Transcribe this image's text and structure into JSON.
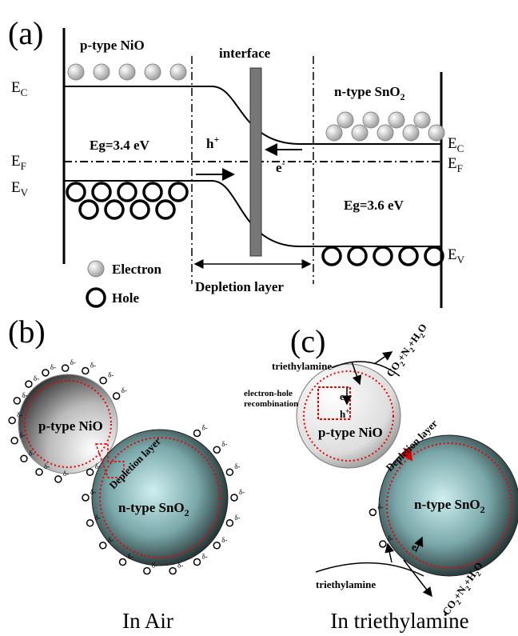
{
  "panel_a": {
    "label": "(a)",
    "left_material": "p-type NiO",
    "interface": "interface",
    "right_material": {
      "main": "n-type SnO",
      "sub": "2"
    },
    "left_gap": "Eg=3.4 eV",
    "right_gap": "Eg=3.6 eV",
    "hole_carrier": {
      "main": "h",
      "sup": "+"
    },
    "electron_carrier": {
      "main": "e",
      "sup": "-"
    },
    "left_ec": {
      "main": "E",
      "sub": "C"
    },
    "left_ef": {
      "main": "E",
      "sub": "F"
    },
    "left_ev": {
      "main": "E",
      "sub": "V"
    },
    "right_ec": {
      "main": "E",
      "sub": "C"
    },
    "right_ef": {
      "main": "E",
      "sub": "F"
    },
    "right_ev": {
      "main": "E",
      "sub": "V"
    },
    "legend_electron": "Electron",
    "legend_hole": "Hole",
    "depletion": "Depletion layer"
  },
  "panel_b": {
    "label": "(b)",
    "nio": "p-type NiO",
    "sno2": {
      "main": "n-type SnO",
      "sub": "2"
    },
    "depletion": "Depletion layer",
    "delta": "δ-",
    "caption": "In Air"
  },
  "panel_c": {
    "label": "(c)",
    "gas_top": "triethylamine",
    "recombination": [
      "electron-hole",
      "recombination"
    ],
    "product": [
      "CO",
      "2",
      "+N",
      "2",
      "+H",
      "2",
      "O"
    ],
    "electron": "e",
    "hole": {
      "main": "h",
      "sup": "+"
    },
    "nio": "p-type NiO",
    "depletion": "Depletion layer",
    "sno2": {
      "main": "n-type SnO",
      "sub": "2"
    },
    "gas_bottom": "triethylamine",
    "electron_bottom": {
      "main": "e",
      "sup": "-"
    },
    "delta": "δ-",
    "caption": "In triethylamine"
  }
}
